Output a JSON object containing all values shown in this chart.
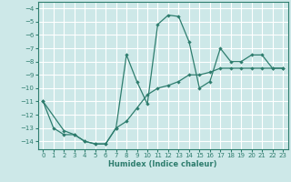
{
  "xlabel": "Humidex (Indice chaleur)",
  "bg_color": "#cde8e8",
  "grid_color": "#ffffff",
  "line_color": "#2e7d6e",
  "xlim": [
    -0.5,
    23.5
  ],
  "ylim": [
    -14.6,
    -3.5
  ],
  "yticks": [
    -14,
    -13,
    -12,
    -11,
    -10,
    -9,
    -8,
    -7,
    -6,
    -5,
    -4
  ],
  "xticks": [
    0,
    1,
    2,
    3,
    4,
    5,
    6,
    7,
    8,
    9,
    10,
    11,
    12,
    13,
    14,
    15,
    16,
    17,
    18,
    19,
    20,
    21,
    22,
    23
  ],
  "series1_x": [
    0,
    1,
    2,
    3,
    4,
    5,
    6,
    7,
    8,
    9,
    10,
    11,
    12,
    13,
    14,
    15,
    16,
    17,
    18,
    19,
    20,
    21,
    22,
    23
  ],
  "series1_y": [
    -11.0,
    -13.0,
    -13.5,
    -13.5,
    -14.0,
    -14.2,
    -14.2,
    -13.0,
    -7.5,
    -9.5,
    -11.2,
    -5.2,
    -4.5,
    -4.6,
    -6.5,
    -10.0,
    -9.5,
    -7.0,
    -8.0,
    -8.0,
    -7.5,
    -7.5,
    -8.5,
    -8.5
  ],
  "series2_x": [
    0,
    2,
    3,
    4,
    5,
    6,
    7,
    8,
    9,
    10,
    11,
    12,
    13,
    14,
    15,
    16,
    17,
    18,
    19,
    20,
    21,
    22,
    23
  ],
  "series2_y": [
    -11.0,
    -13.2,
    -13.5,
    -14.0,
    -14.2,
    -14.2,
    -13.0,
    -12.5,
    -11.5,
    -10.5,
    -10.0,
    -9.8,
    -9.5,
    -9.0,
    -9.0,
    -8.8,
    -8.5,
    -8.5,
    -8.5,
    -8.5,
    -8.5,
    -8.5,
    -8.5
  ]
}
